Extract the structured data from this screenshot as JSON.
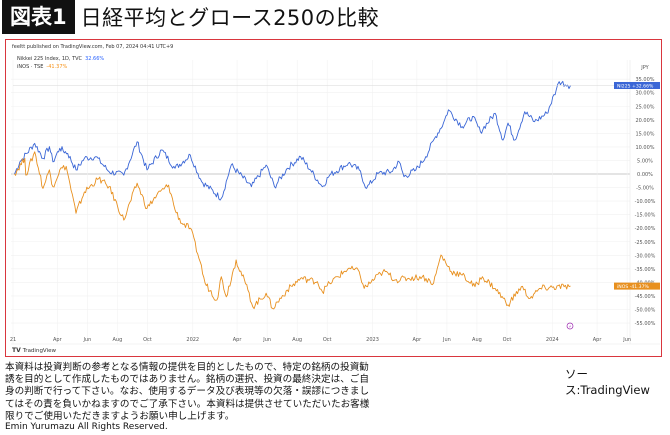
{
  "header": {
    "badge": "図表1",
    "title": "日経平均とグロース250の比較"
  },
  "chart_header": {
    "published": "feeltt published on TradingView.com, Feb 07, 2024 04:41 UTC+9",
    "legend": [
      {
        "label": "Nikkei 225 Index, 1D, TVC",
        "value": "32.66%"
      },
      {
        "label": "iNOS · TSE",
        "value": "-41.37%"
      }
    ]
  },
  "footer": {
    "logo": "TradingView",
    "disclaimer": "本資料は投資判断の参考となる情報の提供を目的としたもので、特定の銘柄の投資勧誘を目的として作成したものではありません。銘柄の選択、投資の最終決定は、ご自身の判断で行って下さい。なお、使用するデータ及び表現等の欠落・誤謬につきましてはその責を負いかねますのでご了承下さい。本資料は提供させていただいたお客様限りでご使用いただきますようお願い申し上げます。",
    "rights": "Emin Yurumazu All Rights Reserved.",
    "source": "ソース:TradingView"
  },
  "colors": {
    "nikkei": "#3a66d6",
    "growth": "#e8901f",
    "frame": "#d9363e",
    "event_marker": "#9c27b0"
  },
  "chart_data": {
    "type": "line",
    "title": "",
    "currency_label": "JPY",
    "y_unit": "%",
    "ylim": [
      -57,
      37
    ],
    "y_ticks": [
      35,
      30,
      25,
      20,
      15,
      10,
      5,
      0,
      -5,
      -10,
      -15,
      -20,
      -25,
      -30,
      -35,
      -40,
      -45,
      -50,
      -55
    ],
    "y_tick_labels": [
      "35.00%",
      "30.00%",
      "25.00%",
      "20.00%",
      "15.00%",
      "10.00%",
      "5.00%",
      "0.00%",
      "-5.00%",
      "-10.00%",
      "-15.00%",
      "-20.00%",
      "-25.00%",
      "-30.00%",
      "-35.00%",
      "-40.00%",
      "-45.00%",
      "-50.00%",
      "-55.00%"
    ],
    "xlim": [
      "2021-01-01",
      "2024-06-20"
    ],
    "x_ticks": [
      {
        "date": "2021-01-01",
        "label": "21"
      },
      {
        "date": "2021-04-01",
        "label": "Apr"
      },
      {
        "date": "2021-06-01",
        "label": "Jun"
      },
      {
        "date": "2021-08-01",
        "label": "Aug"
      },
      {
        "date": "2021-10-01",
        "label": "Oct"
      },
      {
        "date": "2022-01-01",
        "label": "2022"
      },
      {
        "date": "2022-04-01",
        "label": "Apr"
      },
      {
        "date": "2022-06-01",
        "label": "Jun"
      },
      {
        "date": "2022-08-01",
        "label": "Aug"
      },
      {
        "date": "2022-10-01",
        "label": "Oct"
      },
      {
        "date": "2023-01-01",
        "label": "2023"
      },
      {
        "date": "2023-04-01",
        "label": "Apr"
      },
      {
        "date": "2023-06-01",
        "label": "Jun"
      },
      {
        "date": "2023-08-01",
        "label": "Aug"
      },
      {
        "date": "2023-10-01",
        "label": "Oct"
      },
      {
        "date": "2024-01-01",
        "label": "2024"
      },
      {
        "date": "2024-04-01",
        "label": "Apr"
      },
      {
        "date": "2024-06-01",
        "label": "Jun"
      }
    ],
    "grid": true,
    "series": [
      {
        "name": "NI225",
        "last_label": "+32.66%",
        "points": [
          [
            "2021-01-04",
            0
          ],
          [
            "2021-01-15",
            4.5
          ],
          [
            "2021-02-14",
            11.3
          ],
          [
            "2021-03-03",
            5.8
          ],
          [
            "2021-03-16",
            10.1
          ],
          [
            "2021-03-23",
            4.5
          ],
          [
            "2021-04-06",
            9.5
          ],
          [
            "2021-04-22",
            7.6
          ],
          [
            "2021-05-09",
            1.5
          ],
          [
            "2021-05-26",
            5.8
          ],
          [
            "2021-06-18",
            6.4
          ],
          [
            "2021-07-15",
            0.9
          ],
          [
            "2021-08-14",
            -0.4
          ],
          [
            "2021-09-10",
            11.9
          ],
          [
            "2021-09-30",
            1.5
          ],
          [
            "2021-10-30",
            8.9
          ],
          [
            "2021-11-26",
            2.1
          ],
          [
            "2021-12-27",
            7.0
          ],
          [
            "2022-01-19",
            -2.8
          ],
          [
            "2022-02-28",
            -9.0
          ],
          [
            "2022-03-20",
            3.3
          ],
          [
            "2022-04-30",
            -4.7
          ],
          [
            "2022-05-30",
            3.3
          ],
          [
            "2022-06-16",
            -4.7
          ],
          [
            "2022-07-12",
            2.1
          ],
          [
            "2022-08-08",
            6.4
          ],
          [
            "2022-08-28",
            1.5
          ],
          [
            "2022-09-21",
            -4.7
          ],
          [
            "2022-10-06",
            -0.4
          ],
          [
            "2022-11-13",
            4.0
          ],
          [
            "2022-12-05",
            1.5
          ],
          [
            "2022-12-20",
            -5.3
          ],
          [
            "2023-01-12",
            0.2
          ],
          [
            "2023-02-08",
            0.8
          ],
          [
            "2023-02-24",
            4.5
          ],
          [
            "2023-03-06",
            -1.0
          ],
          [
            "2023-03-30",
            1.5
          ],
          [
            "2023-04-19",
            6.4
          ],
          [
            "2023-05-09",
            13.8
          ],
          [
            "2023-05-25",
            18.8
          ],
          [
            "2023-06-04",
            23.7
          ],
          [
            "2023-07-02",
            17.5
          ],
          [
            "2023-07-23",
            21.2
          ],
          [
            "2023-08-08",
            15.6
          ],
          [
            "2023-09-07",
            22.4
          ],
          [
            "2023-09-23",
            12.5
          ],
          [
            "2023-10-03",
            18.8
          ],
          [
            "2023-10-17",
            12.5
          ],
          [
            "2023-11-06",
            23.0
          ],
          [
            "2023-11-26",
            19.3
          ],
          [
            "2023-12-21",
            22.4
          ],
          [
            "2024-01-09",
            31.0
          ],
          [
            "2024-01-15",
            34.1
          ],
          [
            "2024-02-01",
            32.8
          ],
          [
            "2024-02-07",
            32.66
          ]
        ]
      },
      {
        "name": "iNOS",
        "last_label": "-41.37%",
        "points": [
          [
            "2021-01-04",
            0
          ],
          [
            "2021-01-25",
            5.8
          ],
          [
            "2021-01-27",
            -0.4
          ],
          [
            "2021-02-14",
            8.2
          ],
          [
            "2021-03-03",
            -5.3
          ],
          [
            "2021-03-16",
            1.5
          ],
          [
            "2021-03-23",
            -4.7
          ],
          [
            "2021-04-06",
            1.5
          ],
          [
            "2021-04-19",
            2.8
          ],
          [
            "2021-05-09",
            -14.5
          ],
          [
            "2021-05-26",
            -6.6
          ],
          [
            "2021-06-24",
            -1.7
          ],
          [
            "2021-07-15",
            -4.7
          ],
          [
            "2021-08-14",
            -17.0
          ],
          [
            "2021-09-10",
            -3.4
          ],
          [
            "2021-09-30",
            -12.7
          ],
          [
            "2021-10-20",
            -7.8
          ],
          [
            "2021-11-13",
            -4.1
          ],
          [
            "2021-11-26",
            -13.2
          ],
          [
            "2021-12-10",
            -18.2
          ],
          [
            "2021-12-27",
            -20.0
          ],
          [
            "2022-01-16",
            -32.4
          ],
          [
            "2022-01-26",
            -40.3
          ],
          [
            "2022-02-19",
            -46.5
          ],
          [
            "2022-02-28",
            -37.9
          ],
          [
            "2022-03-10",
            -45.3
          ],
          [
            "2022-03-30",
            -31.7
          ],
          [
            "2022-04-23",
            -42.8
          ],
          [
            "2022-05-03",
            -49.0
          ],
          [
            "2022-05-30",
            -44.0
          ],
          [
            "2022-06-12",
            -49.6
          ],
          [
            "2022-07-12",
            -42.8
          ],
          [
            "2022-08-08",
            -38.5
          ],
          [
            "2022-09-11",
            -39.7
          ],
          [
            "2022-09-21",
            -43.4
          ],
          [
            "2022-10-06",
            -40.3
          ],
          [
            "2022-11-13",
            -34.8
          ],
          [
            "2022-12-05",
            -36.0
          ],
          [
            "2022-12-15",
            -42.2
          ],
          [
            "2023-01-17",
            -36.7
          ],
          [
            "2023-01-27",
            -36.0
          ],
          [
            "2023-02-16",
            -39.1
          ],
          [
            "2023-03-15",
            -38.5
          ],
          [
            "2023-04-12",
            -37.9
          ],
          [
            "2023-05-05",
            -40.3
          ],
          [
            "2023-05-20",
            -29.9
          ],
          [
            "2023-06-10",
            -36.0
          ],
          [
            "2023-07-02",
            -37.3
          ],
          [
            "2023-07-28",
            -41.6
          ],
          [
            "2023-08-12",
            -37.9
          ],
          [
            "2023-09-07",
            -42.2
          ],
          [
            "2023-10-03",
            -48.3
          ],
          [
            "2023-10-30",
            -41.6
          ],
          [
            "2023-11-17",
            -45.9
          ],
          [
            "2023-12-08",
            -42.2
          ],
          [
            "2024-01-25",
            -41.6
          ],
          [
            "2024-02-07",
            -41.37
          ]
        ]
      }
    ]
  }
}
